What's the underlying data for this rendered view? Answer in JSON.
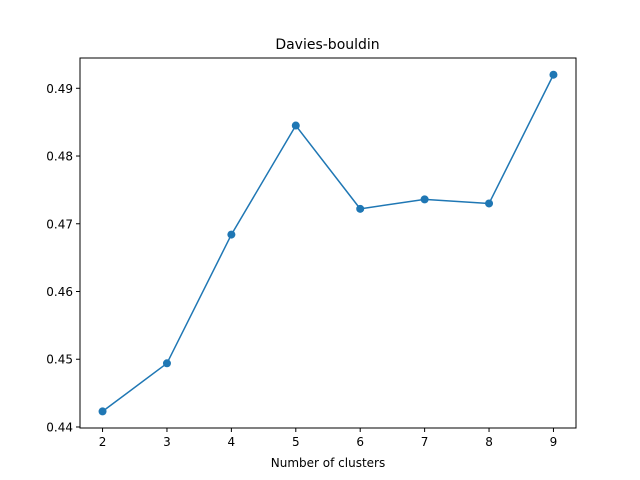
{
  "chart_data": {
    "type": "line",
    "title": "Davies-bouldin",
    "xlabel": "Number of clusters",
    "ylabel": "",
    "x": [
      2,
      3,
      4,
      5,
      6,
      7,
      8,
      9
    ],
    "series": [
      {
        "values": [
          0.4423,
          0.4494,
          0.4684,
          0.4845,
          0.4722,
          0.4736,
          0.473,
          0.492
        ],
        "color": "#1f77b4",
        "marker": "circle"
      }
    ],
    "x_ticks": [
      "2",
      "3",
      "4",
      "5",
      "6",
      "7",
      "8",
      "9"
    ],
    "y_ticks": [
      "0.44",
      "0.45",
      "0.46",
      "0.47",
      "0.48",
      "0.49"
    ],
    "xlim": [
      1.65,
      9.35
    ],
    "ylim": [
      0.43985,
      0.49447
    ],
    "grid": false,
    "legend": "none"
  }
}
